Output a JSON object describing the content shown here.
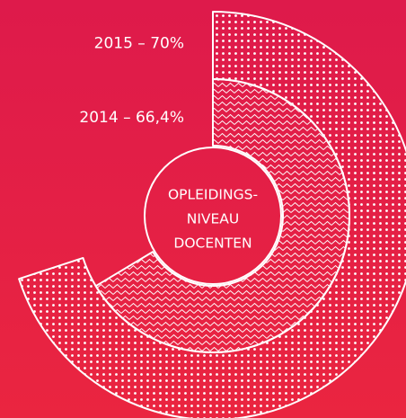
{
  "chart_data": {
    "type": "radial_bar",
    "title": [
      "OPLEIDINGS-",
      "NIVEAU",
      "DOCENTEN"
    ],
    "values": [
      70,
      66.4
    ],
    "value_labels": [
      "2015 – 70%",
      "2014 – 66,4%"
    ],
    "ylim": [
      0,
      100
    ],
    "color": "#ffffff"
  }
}
